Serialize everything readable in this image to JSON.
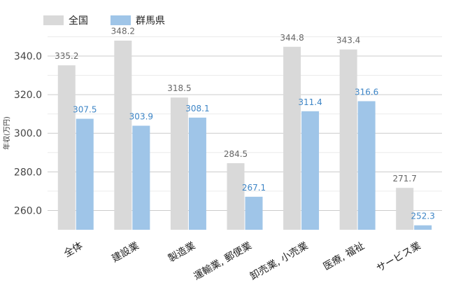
{
  "chart_data": {
    "type": "bar",
    "categories": [
      "全体",
      "建設業",
      "製造業",
      "運輸業, 郵便業",
      "卸売業, 小売業",
      "医療, 福祉",
      "サービス業"
    ],
    "series": [
      {
        "name": "全国",
        "color": "#d9d9d9",
        "label_color": "#666666",
        "values": [
          335.2,
          348.2,
          318.5,
          284.5,
          344.8,
          343.4,
          271.7
        ]
      },
      {
        "name": "群馬県",
        "color": "#9fc5e8",
        "label_color": "#3d85c6",
        "values": [
          307.5,
          303.9,
          308.1,
          267.1,
          311.4,
          316.6,
          252.3
        ]
      }
    ],
    "value_labels": [
      [
        "335.2",
        "348.2",
        "318.5",
        "284.5",
        "344.8",
        "343.4",
        "271.7"
      ],
      [
        "307.5",
        "303.9",
        "308.1",
        "267.1",
        "311.4",
        "316.6",
        "252.3"
      ]
    ],
    "ylabel": "年収(万円)",
    "yticks": [
      260,
      280,
      300,
      320,
      340
    ],
    "ytick_labels": [
      "260.0",
      "280.0",
      "300.0",
      "320.0",
      "340.0"
    ],
    "ylim": [
      250,
      350
    ],
    "grid": true,
    "legend_position": "top-left"
  }
}
